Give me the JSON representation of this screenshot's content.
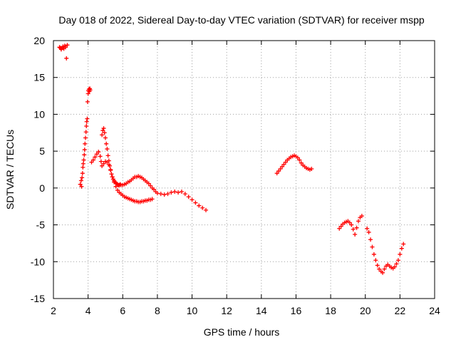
{
  "chart_data": {
    "type": "scatter",
    "title": "Day 018 of 2022, Sidereal Day-to-day VTEC variation (SDTVAR) for receiver mspp",
    "xlabel": "GPS time / hours",
    "ylabel": "SDTVAR / TECUs",
    "xlim": [
      2,
      24
    ],
    "ylim": [
      -15,
      20
    ],
    "xticks": [
      "2",
      "4",
      "6",
      "8",
      "10",
      "12",
      "14",
      "16",
      "18",
      "20",
      "22",
      "24"
    ],
    "yticks": [
      "20",
      "15",
      "10",
      "5",
      "0",
      "-5",
      "-10",
      "-15"
    ],
    "grid": true,
    "marker": "+",
    "color": "#ff0000",
    "series": [
      {
        "name": "early-cluster",
        "x": [
          2.35,
          2.4,
          2.45,
          2.5,
          2.55,
          2.6,
          2.65,
          2.7,
          2.75,
          2.8
        ],
        "y": [
          19.1,
          19.0,
          18.8,
          19.0,
          19.2,
          18.9,
          19.3,
          19.1,
          17.6,
          19.4
        ]
      },
      {
        "name": "rise-to-peak",
        "x": [
          3.55,
          3.6,
          3.62,
          3.65,
          3.68,
          3.7,
          3.72,
          3.75,
          3.78,
          3.8,
          3.82,
          3.85,
          3.88,
          3.9,
          3.92,
          3.95,
          3.97,
          4.0,
          4.02,
          4.05,
          4.08,
          4.1,
          4.12
        ],
        "y": [
          0.5,
          1.0,
          0.2,
          1.4,
          2.0,
          2.8,
          3.3,
          3.8,
          4.5,
          5.2,
          6.0,
          6.8,
          7.6,
          8.4,
          9.0,
          9.4,
          11.7,
          12.8,
          13.2,
          13.4,
          13.1,
          13.5,
          13.3
        ]
      },
      {
        "name": "upper-branch",
        "x": [
          4.2,
          4.3,
          4.4,
          4.5,
          4.6,
          4.7,
          4.75,
          4.8,
          4.85,
          4.9,
          4.95,
          5.0,
          5.05,
          5.1,
          5.15,
          5.2,
          5.25,
          5.3,
          5.35,
          5.4,
          5.45,
          5.5,
          5.55,
          5.6,
          5.65,
          5.7,
          5.75,
          5.8,
          5.85,
          5.9,
          6.0,
          6.1,
          6.2,
          6.3,
          6.4,
          6.5,
          6.6,
          6.7,
          6.8,
          6.9,
          7.0,
          7.1,
          7.2,
          7.3,
          7.4,
          7.5,
          7.6,
          7.7,
          7.8,
          7.9,
          8.0,
          8.2,
          8.4,
          8.6,
          8.8,
          9.0,
          9.2,
          9.4,
          9.6,
          9.8,
          10.0,
          10.2,
          10.4,
          10.6,
          10.8
        ],
        "y": [
          3.5,
          3.8,
          4.2,
          4.6,
          4.9,
          4.3,
          3.6,
          7.2,
          7.8,
          8.1,
          7.5,
          6.8,
          6.0,
          5.3,
          4.4,
          3.7,
          3.0,
          2.4,
          1.9,
          1.5,
          1.2,
          1.0,
          0.8,
          0.7,
          0.6,
          0.5,
          0.4,
          0.4,
          0.5,
          0.4,
          0.4,
          0.5,
          0.6,
          0.8,
          0.9,
          1.1,
          1.3,
          1.5,
          1.5,
          1.6,
          1.5,
          1.4,
          1.2,
          1.0,
          0.8,
          0.6,
          0.3,
          0.0,
          -0.2,
          -0.5,
          -0.7,
          -0.8,
          -0.9,
          -0.8,
          -0.6,
          -0.5,
          -0.6,
          -0.5,
          -0.8,
          -1.2,
          -1.6,
          -2.0,
          -2.4,
          -2.7,
          -3.0
        ]
      },
      {
        "name": "lower-branch",
        "x": [
          4.8,
          4.9,
          5.0,
          5.1,
          5.2,
          5.3,
          5.4,
          5.5,
          5.6,
          5.7,
          5.8,
          5.9,
          6.0,
          6.1,
          6.2,
          6.3,
          6.4,
          6.5,
          6.6,
          6.7,
          6.8,
          6.9,
          7.0,
          7.1,
          7.2,
          7.3,
          7.4,
          7.5,
          7.6,
          7.7
        ],
        "y": [
          3.0,
          3.3,
          3.6,
          3.5,
          3.2,
          2.5,
          1.5,
          0.8,
          0.2,
          -0.3,
          -0.6,
          -0.8,
          -1.0,
          -1.2,
          -1.3,
          -1.4,
          -1.5,
          -1.6,
          -1.7,
          -1.8,
          -1.8,
          -1.9,
          -1.9,
          -1.8,
          -1.8,
          -1.7,
          -1.7,
          -1.6,
          -1.6,
          -1.5
        ]
      },
      {
        "name": "afternoon-arc",
        "x": [
          14.9,
          15.0,
          15.1,
          15.2,
          15.3,
          15.4,
          15.5,
          15.6,
          15.7,
          15.8,
          15.9,
          16.0,
          16.1,
          16.2,
          16.3,
          16.4,
          16.5,
          16.6,
          16.7,
          16.8,
          16.9
        ],
        "y": [
          2.0,
          2.3,
          2.6,
          2.9,
          3.2,
          3.5,
          3.8,
          4.0,
          4.2,
          4.3,
          4.4,
          4.3,
          4.1,
          3.8,
          3.4,
          3.1,
          2.9,
          2.7,
          2.6,
          2.5,
          2.6
        ]
      },
      {
        "name": "late-cluster",
        "x": [
          18.5,
          18.6,
          18.7,
          18.8,
          18.9,
          19.0,
          19.1,
          19.2,
          19.3,
          19.4,
          19.5,
          19.6,
          19.7,
          19.8
        ],
        "y": [
          -5.5,
          -5.2,
          -4.9,
          -4.7,
          -4.6,
          -4.5,
          -4.7,
          -5.0,
          -5.6,
          -6.3,
          -5.4,
          -4.5,
          -4.0,
          -3.8
        ]
      },
      {
        "name": "evening-dip",
        "x": [
          20.1,
          20.2,
          20.3,
          20.4,
          20.5,
          20.6,
          20.7,
          20.8,
          20.9,
          21.0,
          21.1,
          21.2,
          21.3,
          21.4,
          21.5,
          21.6,
          21.7,
          21.8,
          21.9,
          22.0,
          22.1,
          22.2
        ],
        "y": [
          -5.5,
          -6.0,
          -7.0,
          -8.0,
          -9.0,
          -9.8,
          -10.5,
          -11.0,
          -11.3,
          -11.5,
          -11.0,
          -10.6,
          -10.4,
          -10.6,
          -10.8,
          -10.9,
          -10.7,
          -10.3,
          -9.8,
          -9.0,
          -8.2,
          -7.6
        ]
      }
    ]
  }
}
